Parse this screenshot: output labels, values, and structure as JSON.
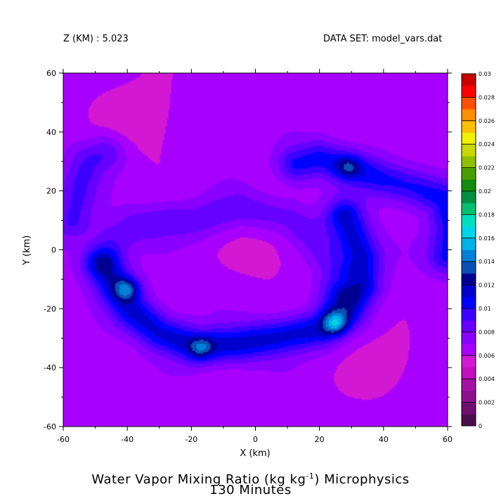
{
  "header": {
    "z_label": "Z (KM) : 5.023",
    "dataset_label": "DATA SET: model_vars.dat"
  },
  "titles": {
    "line1_main": "Water Vapor Mixing Ratio (kg kg",
    "line1_sup": "-1",
    "line1_rest": ") Microphysics",
    "line2": "130 Minutes"
  },
  "chart_data": {
    "type": "heatmap",
    "title": "Water Vapor Mixing Ratio (kg kg-1) Microphysics",
    "subtitle": "130 Minutes",
    "xlabel": "X (km)",
    "ylabel": "Y (km)",
    "xlim": [
      -60,
      60
    ],
    "ylim": [
      -60,
      60
    ],
    "x_ticks": [
      -60,
      -40,
      -20,
      0,
      20,
      40,
      60
    ],
    "y_ticks": [
      -60,
      -40,
      -20,
      0,
      20,
      40,
      60
    ],
    "colorbar": {
      "range": [
        0,
        0.03
      ],
      "levels": [
        0,
        0.001,
        0.002,
        0.003,
        0.004,
        0.005,
        0.006,
        0.007,
        0.008,
        0.009,
        0.01,
        0.011,
        0.012,
        0.013,
        0.014,
        0.015,
        0.016,
        0.017,
        0.018,
        0.019,
        0.02,
        0.021,
        0.022,
        0.023,
        0.024,
        0.025,
        0.026,
        0.027,
        0.028,
        0.029,
        0.03
      ],
      "tick_labels": [
        "0",
        "0.002",
        "0.004",
        "0.006",
        "0.008",
        "0.01",
        "0.012",
        "0.014",
        "0.016",
        "0.018",
        "0.02",
        "0.022",
        "0.024",
        "0.026",
        "0.028",
        "0.03"
      ],
      "colors": [
        "#4a0e4a",
        "#6e0f6e",
        "#8c128c",
        "#a412a4",
        "#c010c0",
        "#d218d2",
        "#a800ff",
        "#8a00ff",
        "#6600ff",
        "#3a00ff",
        "#0000ff",
        "#0000cc",
        "#000090",
        "#0a4fb4",
        "#0080d6",
        "#00b0e8",
        "#00d4e8",
        "#00e0c0",
        "#00c070",
        "#009040",
        "#108c10",
        "#48a000",
        "#90c000",
        "#c8d800",
        "#f0f000",
        "#ffc000",
        "#ff9000",
        "#ff5000",
        "#ff0000",
        "#c80000",
        "#7a0000"
      ]
    },
    "field": {
      "description_units": "kg kg-1",
      "background_value": 0.0065,
      "features": [
        {
          "name": "lower-spiral-band",
          "value": 0.0115,
          "points": [
            [
              -47,
              -6
            ],
            [
              -44,
              -12
            ],
            [
              -38,
              -21
            ],
            [
              -30,
              -28
            ],
            [
              -18,
              -33
            ],
            [
              -5,
              -32
            ],
            [
              10,
              -29
            ],
            [
              20,
              -27
            ],
            [
              28,
              -21
            ],
            [
              33,
              -12
            ],
            [
              33,
              -2
            ],
            [
              30,
              6
            ],
            [
              28,
              11
            ]
          ]
        },
        {
          "name": "upper-spiral-band",
          "value": 0.0105,
          "points": [
            [
              13,
              29
            ],
            [
              20,
              31
            ],
            [
              30,
              28
            ],
            [
              40,
              24
            ],
            [
              50,
              21
            ],
            [
              59,
              17
            ],
            [
              61,
              8
            ],
            [
              60,
              -2
            ]
          ]
        },
        {
          "name": "west-arm",
          "value": 0.0092,
          "points": [
            [
              -57,
              10
            ],
            [
              -56,
              17
            ],
            [
              -55,
              23
            ],
            [
              -52,
              30
            ],
            [
              -47,
              33
            ]
          ]
        },
        {
          "name": "inner-arc",
          "value": 0.0088,
          "points": [
            [
              -48,
              -2
            ],
            [
              -44,
              4
            ],
            [
              -37,
              8
            ],
            [
              -28,
              10
            ],
            [
              -18,
              10
            ],
            [
              -5,
              14
            ],
            [
              10,
              11
            ],
            [
              18,
              4
            ],
            [
              24,
              -5
            ],
            [
              25,
              -14
            ]
          ]
        }
      ],
      "maxima": [
        {
          "x": -40,
          "y": -13,
          "value": 0.0145
        },
        {
          "x": 25,
          "y": -25,
          "value": 0.0152
        },
        {
          "x": 29,
          "y": 28,
          "value": 0.0132
        },
        {
          "x": -17,
          "y": -33,
          "value": 0.0135
        }
      ]
    }
  }
}
